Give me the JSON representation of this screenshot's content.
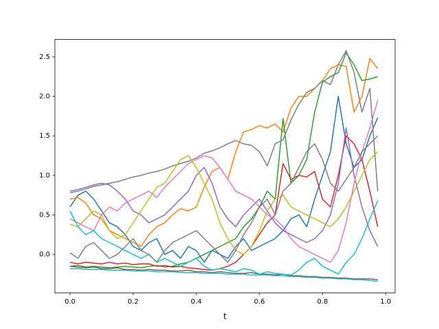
{
  "chart_data": {
    "type": "line",
    "xlabel": "t",
    "x": [
      0,
      0.025,
      0.05,
      0.075,
      0.1,
      0.125,
      0.15,
      0.175,
      0.2,
      0.225,
      0.25,
      0.275,
      0.3,
      0.325,
      0.35,
      0.375,
      0.4,
      0.425,
      0.45,
      0.475,
      0.5,
      0.525,
      0.55,
      0.575,
      0.6,
      0.625,
      0.65,
      0.675,
      0.7,
      0.725,
      0.75,
      0.775,
      0.8,
      0.825,
      0.85,
      0.875,
      0.9,
      0.925,
      0.95,
      0.975
    ],
    "xlim": [
      -0.048,
      1.03
    ],
    "ylim": [
      -0.486,
      2.72
    ],
    "xticks": [
      {
        "value": 0,
        "label": "0.0"
      },
      0.2,
      0.4,
      0.6,
      0.8,
      {
        "value": 1,
        "label": "1.0"
      }
    ],
    "yticks": [
      {
        "value": 0,
        "label": "0.0"
      },
      0.5,
      {
        "value": 1,
        "label": "1.0"
      },
      1.5,
      {
        "value": 2,
        "label": "2.0"
      },
      2.5
    ],
    "grid": false,
    "series": [
      {
        "color": "#1f77b4",
        "values": [
          0.6,
          0.75,
          0.8,
          0.7,
          0.55,
          0.4,
          0.35,
          0.25,
          0.1,
          0.05,
          0.15,
          0.2,
          0.0,
          0.05,
          -0.05,
          0.1,
          0.05,
          -0.1,
          0.05,
          0.0,
          -0.05,
          0.1,
          0.2,
          0.05,
          0.1,
          0.15,
          0.2,
          0.3,
          0.45,
          0.5,
          0.35,
          0.7,
          1.0,
          1.3,
          2.0,
          1.4,
          1.1,
          1.2,
          1.5,
          1.73
        ]
      },
      {
        "color": "#ff7f0e",
        "values": [
          0.7,
          0.72,
          0.65,
          0.5,
          0.45,
          0.3,
          0.25,
          0.2,
          0.15,
          0.1,
          0.25,
          0.35,
          0.4,
          0.5,
          0.58,
          0.55,
          0.6,
          0.85,
          1.05,
          1.1,
          0.95,
          1.3,
          1.55,
          1.58,
          1.63,
          1.6,
          1.65,
          1.55,
          1.85,
          2.0,
          2.0,
          2.1,
          2.2,
          2.35,
          2.4,
          2.38,
          1.8,
          2.0,
          2.48,
          2.35
        ]
      },
      {
        "color": "#2ca02c",
        "values": [
          -0.15,
          -0.14,
          -0.16,
          -0.15,
          -0.16,
          -0.17,
          -0.16,
          -0.15,
          -0.16,
          -0.17,
          -0.15,
          -0.14,
          -0.16,
          -0.15,
          -0.12,
          -0.1,
          -0.05,
          0.0,
          0.05,
          0.1,
          0.15,
          0.2,
          0.35,
          0.45,
          0.6,
          0.8,
          0.7,
          1.72,
          0.9,
          1.0,
          1.2,
          1.8,
          2.18,
          2.25,
          2.3,
          2.55,
          2.4,
          2.2,
          2.22,
          2.25
        ]
      },
      {
        "color": "#d62728",
        "values": [
          -0.1,
          -0.12,
          -0.1,
          -0.11,
          -0.12,
          -0.1,
          -0.12,
          -0.11,
          -0.13,
          -0.12,
          -0.12,
          -0.15,
          -0.14,
          -0.16,
          -0.15,
          -0.17,
          -0.18,
          -0.19,
          -0.2,
          -0.18,
          -0.15,
          -0.1,
          0.0,
          0.1,
          0.25,
          0.4,
          0.5,
          1.15,
          0.95,
          1.0,
          0.98,
          1.05,
          0.7,
          0.6,
          1.0,
          1.5,
          1.4,
          1.2,
          0.8,
          0.35
        ]
      },
      {
        "color": "#9467bd",
        "values": [
          0.8,
          0.82,
          0.85,
          0.88,
          0.9,
          0.88,
          0.8,
          0.7,
          0.55,
          0.5,
          0.4,
          0.45,
          0.5,
          0.6,
          0.7,
          0.8,
          1.0,
          1.1,
          0.9,
          0.6,
          0.45,
          0.35,
          0.5,
          0.6,
          0.7,
          0.55,
          0.4,
          0.3,
          0.25,
          0.2,
          0.15,
          0.2,
          0.3,
          0.5,
          0.9,
          1.6,
          1.0,
          0.6,
          0.3,
          0.1
        ]
      },
      {
        "color": "#8c564b",
        "values": [
          -0.15,
          -0.16,
          -0.17,
          -0.16,
          -0.18,
          -0.18,
          -0.17,
          -0.19,
          -0.19,
          -0.2,
          -0.19,
          -0.2,
          -0.2,
          -0.21,
          -0.21,
          -0.2,
          -0.22,
          -0.22,
          -0.23,
          -0.22,
          -0.23,
          -0.24,
          -0.24,
          -0.23,
          -0.25,
          -0.25,
          -0.26,
          -0.25,
          -0.27,
          -0.27,
          -0.28,
          -0.28,
          -0.29,
          -0.29,
          -0.3,
          -0.3,
          -0.31,
          -0.31,
          -0.31,
          -0.32
        ]
      },
      {
        "color": "#e377c2",
        "values": [
          0.45,
          0.4,
          0.35,
          0.3,
          0.5,
          0.6,
          0.55,
          0.65,
          0.7,
          0.75,
          0.8,
          0.72,
          0.85,
          0.95,
          1.05,
          1.15,
          1.2,
          1.25,
          1.22,
          1.1,
          0.95,
          0.8,
          0.75,
          0.7,
          0.6,
          0.5,
          0.45,
          0.35,
          0.2,
          0.1,
          0.05,
          0.0,
          -0.05,
          -0.1,
          0.05,
          0.4,
          0.9,
          1.3,
          1.6,
          1.95
        ]
      },
      {
        "color": "#7f7f7f",
        "values": [
          0.78,
          0.8,
          0.83,
          0.86,
          0.88,
          0.9,
          0.92,
          0.95,
          0.98,
          1.0,
          1.03,
          1.05,
          1.08,
          1.12,
          1.15,
          1.18,
          1.22,
          1.28,
          1.31,
          1.35,
          1.4,
          1.44,
          1.4,
          1.38,
          1.3,
          1.12,
          1.4,
          1.45,
          1.7,
          1.9,
          2.05,
          2.1,
          2.2,
          2.15,
          2.4,
          2.58,
          2.3,
          1.8,
          2.1,
          0.8
        ]
      },
      {
        "color": "#bcbd22",
        "values": [
          0.38,
          0.35,
          0.45,
          0.55,
          0.5,
          0.3,
          0.2,
          0.25,
          0.4,
          0.55,
          0.7,
          0.85,
          0.9,
          1.05,
          1.2,
          1.25,
          1.1,
          0.9,
          0.7,
          0.4,
          0.2,
          0.05,
          0.0,
          0.1,
          0.3,
          0.55,
          0.7,
          0.75,
          0.6,
          0.55,
          0.5,
          0.45,
          0.4,
          0.35,
          0.45,
          0.6,
          0.8,
          1.0,
          1.2,
          1.3
        ]
      },
      {
        "color": "#17becf",
        "values": [
          0.55,
          0.35,
          0.25,
          0.3,
          0.2,
          0.15,
          0.1,
          0.05,
          0.0,
          -0.05,
          0.0,
          -0.1,
          -0.05,
          -0.1,
          -0.15,
          -0.1,
          -0.05,
          -0.15,
          -0.2,
          -0.18,
          -0.2,
          -0.22,
          -0.18,
          -0.2,
          -0.25,
          -0.22,
          -0.24,
          -0.25,
          -0.26,
          -0.2,
          -0.1,
          -0.05,
          -0.15,
          -0.2,
          -0.25,
          -0.1,
          0.0,
          0.2,
          0.45,
          0.68
        ]
      },
      {
        "color": "#7f7f7f",
        "values": [
          0.02,
          -0.05,
          0.1,
          0.15,
          0.05,
          -0.05,
          0.0,
          0.1,
          0.2,
          0.05,
          0.0,
          -0.1,
          0.05,
          0.15,
          0.2,
          0.25,
          0.3,
          0.2,
          0.1,
          0.0,
          -0.1,
          0.05,
          0.25,
          0.4,
          0.6,
          0.7,
          0.5,
          0.8,
          0.9,
          1.1,
          1.3,
          1.4,
          1.2,
          0.9,
          0.8,
          0.95,
          1.1,
          1.3,
          1.4,
          1.5
        ]
      },
      {
        "color": "#17becf",
        "values": [
          -0.18,
          -0.18,
          -0.19,
          -0.19,
          -0.19,
          -0.2,
          -0.2,
          -0.2,
          -0.21,
          -0.21,
          -0.21,
          -0.22,
          -0.22,
          -0.22,
          -0.23,
          -0.23,
          -0.23,
          -0.24,
          -0.24,
          -0.24,
          -0.25,
          -0.25,
          -0.25,
          -0.26,
          -0.26,
          -0.26,
          -0.27,
          -0.27,
          -0.28,
          -0.28,
          -0.29,
          -0.29,
          -0.3,
          -0.3,
          -0.31,
          -0.31,
          -0.32,
          -0.32,
          -0.33,
          -0.34
        ]
      }
    ]
  }
}
